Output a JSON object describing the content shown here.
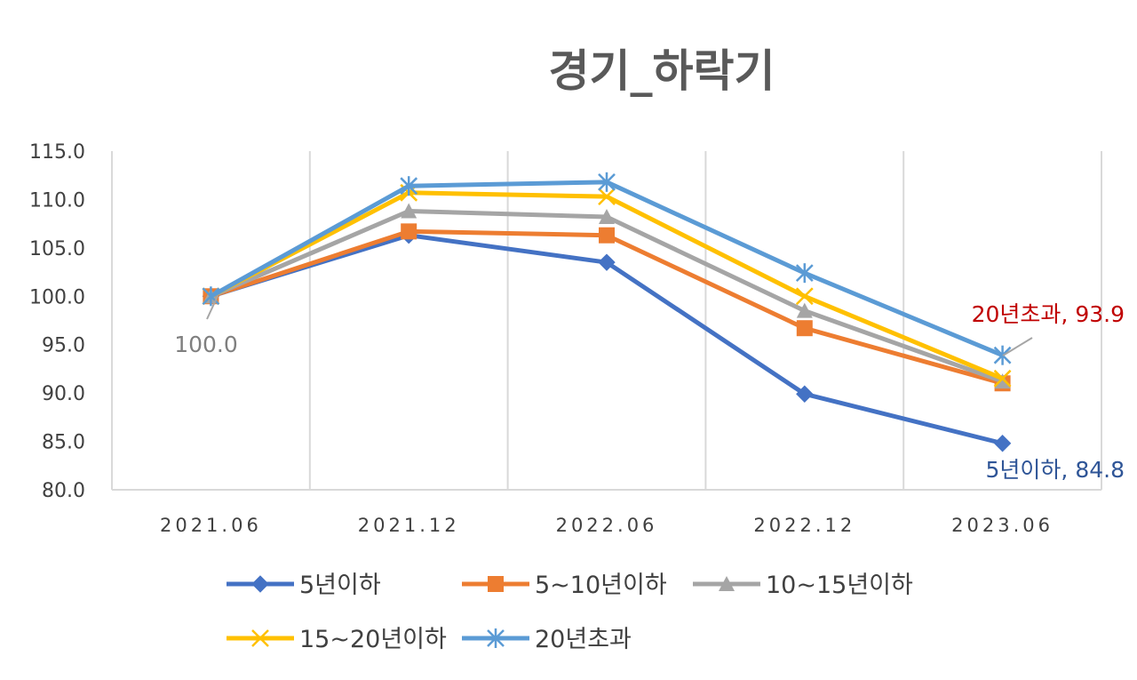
{
  "chart_data": {
    "type": "line",
    "title": "경기_하락기",
    "categories": [
      "2021.06",
      "2021.12",
      "2022.06",
      "2022.12",
      "2023.06"
    ],
    "ylim": [
      80,
      115
    ],
    "yticks": [
      "80.0",
      "85.0",
      "90.0",
      "95.0",
      "100.0",
      "105.0",
      "110.0",
      "115.0"
    ],
    "grid": "vertical",
    "legend_position": "bottom",
    "series": [
      {
        "name": "5년이하",
        "color": "#4472C4",
        "marker": "diamond",
        "values": [
          100.0,
          106.3,
          103.5,
          89.9,
          84.8
        ]
      },
      {
        "name": "5~10년이하",
        "color": "#ED7D31",
        "marker": "square",
        "values": [
          100.0,
          106.7,
          106.3,
          96.7,
          91.0
        ]
      },
      {
        "name": "10~15년이하",
        "color": "#A5A5A5",
        "marker": "triangle",
        "values": [
          100.0,
          108.8,
          108.2,
          98.5,
          91.2
        ]
      },
      {
        "name": "15~20년이하",
        "color": "#FFC000",
        "marker": "x",
        "values": [
          100.0,
          110.7,
          110.3,
          100.0,
          91.5
        ]
      },
      {
        "name": "20년초과",
        "color": "#5B9BD5",
        "marker": "star",
        "values": [
          100.0,
          111.4,
          111.8,
          102.4,
          93.9
        ]
      }
    ],
    "annotations": [
      {
        "text": "100.0",
        "color": "#7F7F7F"
      },
      {
        "text": "20년초과, 93.9",
        "color": "#C00000"
      },
      {
        "text": "5년이하, 84.8",
        "color": "#2F5597"
      }
    ]
  }
}
